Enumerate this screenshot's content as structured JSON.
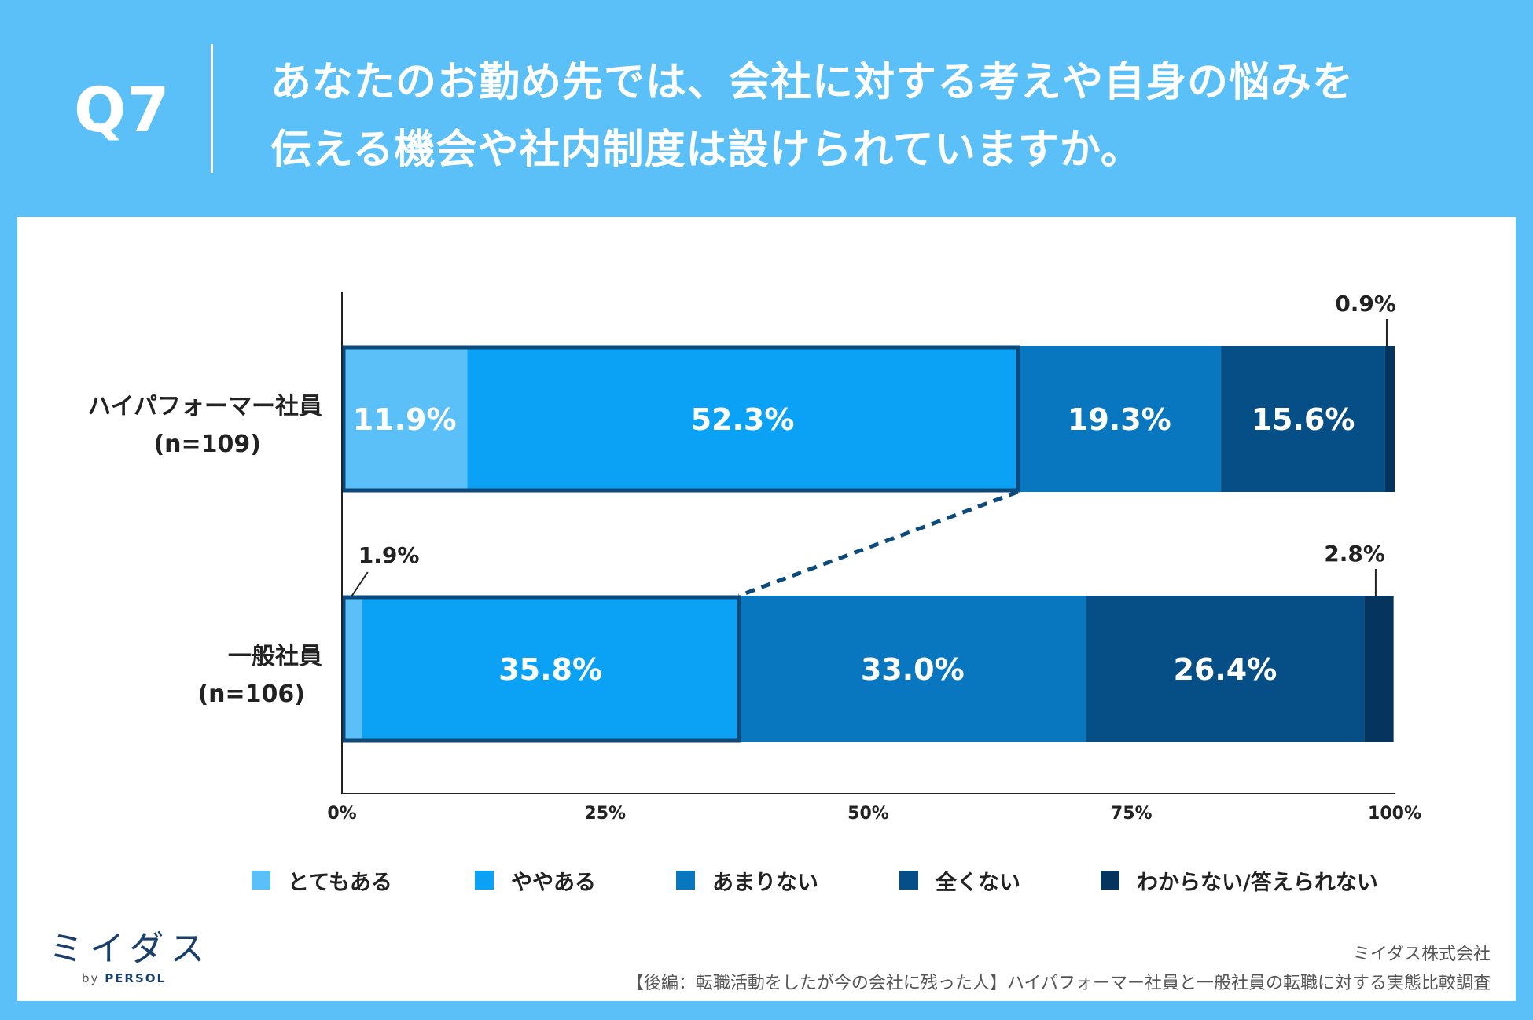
{
  "question": {
    "number": "Q7",
    "line1": "あなたのお勤め先では、会社に対する考えや自身の悩みを",
    "line2": "伝える機会や社内制度は設けられていますか。"
  },
  "chart_data": {
    "type": "bar",
    "orientation": "horizontal",
    "stacked": true,
    "categories": [
      {
        "label": "ハイパフォーマー社員",
        "n": "(n=109)"
      },
      {
        "label": "一般社員",
        "n": "(n=106)"
      }
    ],
    "series": [
      {
        "name": "とてもある",
        "color": "#5bbff8",
        "values": [
          11.9,
          1.9
        ],
        "labels": [
          "11.9%",
          "1.9%"
        ]
      },
      {
        "name": "ややある",
        "color": "#0ba1f5",
        "values": [
          52.3,
          35.8
        ],
        "labels": [
          "52.3%",
          "35.8%"
        ]
      },
      {
        "name": "あまりない",
        "color": "#0877c0",
        "values": [
          19.3,
          33.0
        ],
        "labels": [
          "19.3%",
          "33.0%"
        ]
      },
      {
        "name": "全くない",
        "color": "#064e86",
        "values": [
          15.6,
          26.4
        ],
        "labels": [
          "15.6%",
          "26.4%"
        ]
      },
      {
        "name": "わからない/答えられない",
        "color": "#05345e",
        "values": [
          0.9,
          2.8
        ],
        "labels": [
          "0.9%",
          "2.8%"
        ]
      }
    ],
    "xlim": [
      0,
      100
    ],
    "ticks": [
      0,
      25,
      50,
      75,
      100
    ],
    "tick_labels": [
      "0%",
      "25%",
      "50%",
      "75%",
      "100%"
    ],
    "highlight": "とてもある + ややある",
    "legend": "bottom"
  },
  "footer": {
    "logo": "ミイダス",
    "logo_by": "by",
    "logo_brand": "PERSOL",
    "company": "ミイダス株式会社",
    "survey": "【後編：転職活動をしたが今の会社に残った人】ハイパフォーマー社員と一般社員の転職に対する実態比較調査"
  }
}
